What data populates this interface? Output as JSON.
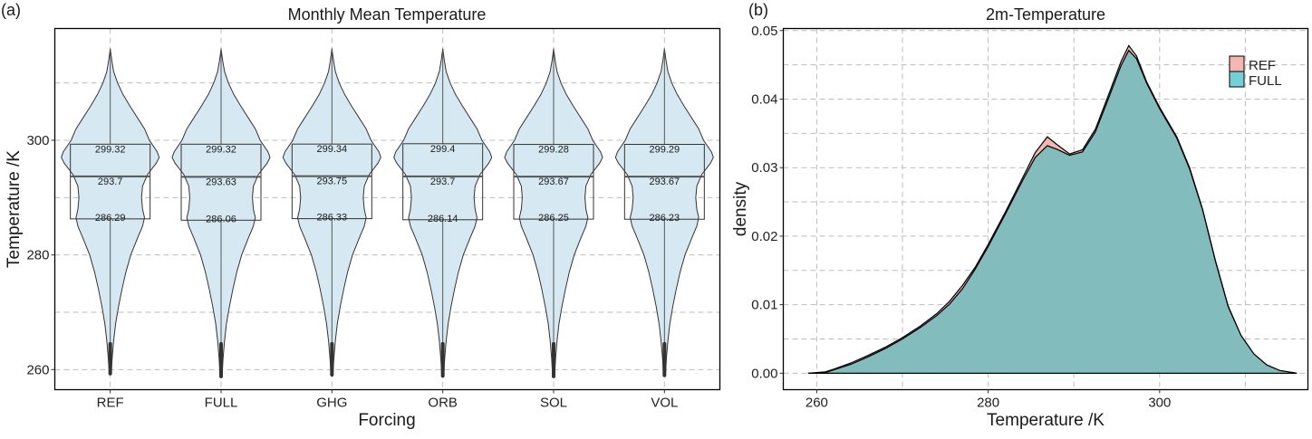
{
  "chart_data": [
    {
      "panel_label": "(a)",
      "type": "violin",
      "title": "Monthly Mean Temperature",
      "xlabel": "Forcing",
      "ylabel": "Temperature /K",
      "ylim": [
        256.5,
        319.5
      ],
      "yticks": [
        260,
        280,
        300
      ],
      "minor_yticks": [
        270,
        290,
        310
      ],
      "grid": true,
      "categories": [
        "REF",
        "FULL",
        "GHG",
        "ORB",
        "SOL",
        "VOL"
      ],
      "fill_color": "#d6e9f2",
      "boxes": [
        {
          "name": "REF",
          "q3": 299.32,
          "median": 293.7,
          "q1": 286.29,
          "min": 259.3,
          "max": 315.9
        },
        {
          "name": "FULL",
          "q3": 299.32,
          "median": 293.63,
          "q1": 286.06,
          "min": 258.8,
          "max": 315.9
        },
        {
          "name": "GHG",
          "q3": 299.34,
          "median": 293.75,
          "q1": 286.33,
          "min": 259.1,
          "max": 315.9
        },
        {
          "name": "ORB",
          "q3": 299.4,
          "median": 293.7,
          "q1": 286.14,
          "min": 258.9,
          "max": 315.9
        },
        {
          "name": "SOL",
          "q3": 299.28,
          "median": 293.67,
          "q1": 286.25,
          "min": 258.8,
          "max": 315.9
        },
        {
          "name": "VOL",
          "q3": 299.29,
          "median": 293.67,
          "q1": 286.23,
          "min": 259.0,
          "max": 315.9
        }
      ],
      "violin_profile": {
        "temps": [
          259,
          262,
          265,
          268,
          271,
          274,
          277,
          280,
          283,
          285,
          286.5,
          288,
          290,
          292,
          294,
          296,
          297,
          298,
          300,
          302,
          304,
          306,
          308,
          310,
          312,
          314,
          316
        ],
        "widths": [
          0.02,
          0.04,
          0.07,
          0.11,
          0.17,
          0.24,
          0.32,
          0.42,
          0.56,
          0.66,
          0.7,
          0.66,
          0.64,
          0.66,
          0.76,
          0.94,
          1.0,
          0.96,
          0.8,
          0.7,
          0.55,
          0.4,
          0.26,
          0.15,
          0.07,
          0.03,
          0.0
        ]
      }
    },
    {
      "panel_label": "(b)",
      "type": "area",
      "title": "2m-Temperature",
      "xlabel": "Temperature /K",
      "ylabel": "density",
      "xlim": [
        256.1,
        317.3
      ],
      "ylim": [
        -0.0024,
        0.0503
      ],
      "xticks": [
        260,
        280,
        300
      ],
      "minor_xticks": [
        270,
        290,
        310
      ],
      "yticks": [
        0.0,
        0.01,
        0.02,
        0.03,
        0.04,
        0.05
      ],
      "ytick_labels": [
        "0.00",
        "0.01",
        "0.02",
        "0.03",
        "0.04",
        "0.05"
      ],
      "minor_yticks": [
        0.005,
        0.015,
        0.025,
        0.035,
        0.045
      ],
      "grid": true,
      "legend": {
        "position": "top-right",
        "entries": [
          "REF",
          "FULL"
        ]
      },
      "series": [
        {
          "name": "REF",
          "color": "#f4b6b0",
          "x": [
            259,
            261,
            262,
            264,
            266,
            268,
            270,
            272,
            274,
            275.5,
            277,
            278.5,
            280,
            282,
            284,
            285.5,
            286.9,
            288,
            289.5,
            291,
            292.5,
            294,
            295.5,
            296.4,
            297.3,
            298.5,
            300,
            302,
            303.5,
            305,
            306.5,
            308,
            309.5,
            311,
            312.5,
            314,
            316
          ],
          "y": [
            0.0,
            0.0002,
            0.0006,
            0.0015,
            0.0026,
            0.0038,
            0.0052,
            0.0068,
            0.0087,
            0.0105,
            0.0128,
            0.0155,
            0.0188,
            0.0235,
            0.0285,
            0.0322,
            0.0345,
            0.0334,
            0.032,
            0.0326,
            0.0356,
            0.0405,
            0.0455,
            0.0478,
            0.0463,
            0.0425,
            0.0388,
            0.0345,
            0.03,
            0.024,
            0.0165,
            0.0098,
            0.0055,
            0.0028,
            0.0012,
            0.0004,
            0.0
          ]
        },
        {
          "name": "FULL",
          "color": "#72d0d6",
          "x": [
            259,
            261,
            262,
            264,
            266,
            268,
            270,
            272,
            274,
            275.5,
            277,
            278.5,
            280,
            282,
            284,
            285.5,
            286.9,
            288,
            289.5,
            291,
            292.5,
            294,
            295.5,
            296.4,
            297.3,
            298.5,
            300,
            302,
            303.5,
            305,
            306.5,
            308,
            309.5,
            311,
            312.5,
            314,
            316
          ],
          "y": [
            0.0,
            0.0001,
            0.0005,
            0.0013,
            0.0024,
            0.0036,
            0.005,
            0.0066,
            0.0084,
            0.0101,
            0.0123,
            0.0152,
            0.0185,
            0.0232,
            0.0281,
            0.0315,
            0.0332,
            0.0327,
            0.0318,
            0.0323,
            0.0352,
            0.04,
            0.0449,
            0.0471,
            0.0459,
            0.0423,
            0.0386,
            0.0343,
            0.0298,
            0.0239,
            0.0164,
            0.0097,
            0.0055,
            0.0028,
            0.0012,
            0.0004,
            0.0
          ]
        }
      ],
      "overlap_color": "#7fbcbc"
    }
  ]
}
